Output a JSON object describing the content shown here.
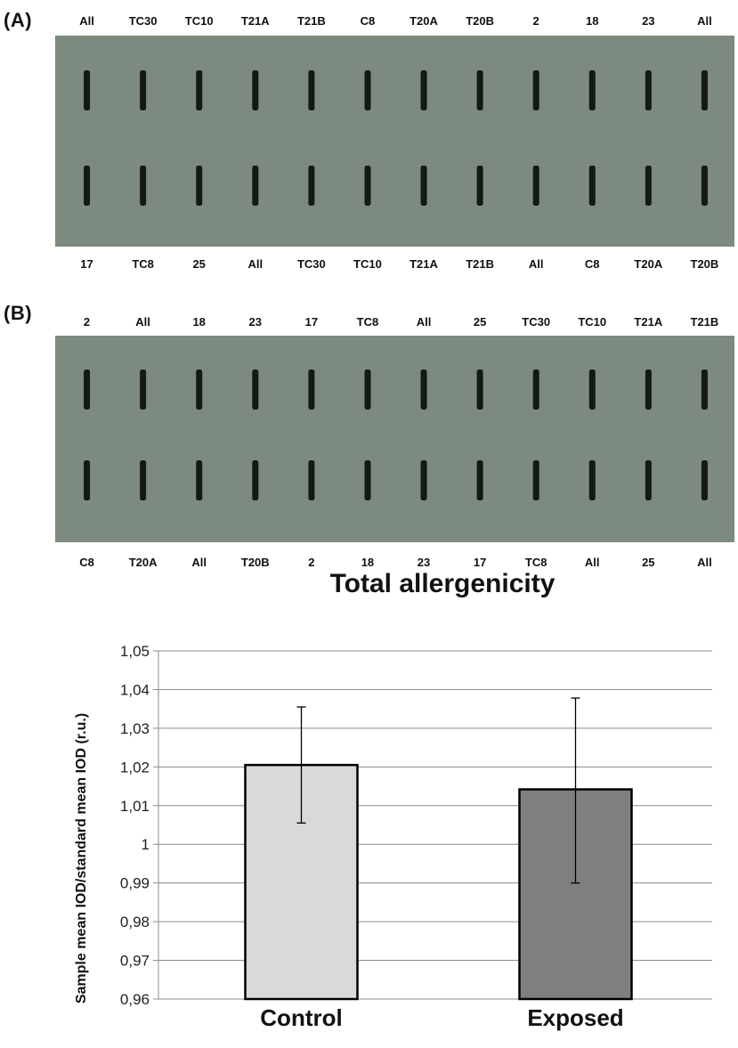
{
  "panel_a": {
    "tag": "(A)",
    "top_labels": [
      "All",
      "TC30",
      "TC10",
      "T21A",
      "T21B",
      "C8",
      "T20A",
      "T20B",
      "2",
      "18",
      "23",
      "All"
    ],
    "bottom_labels": [
      "17",
      "TC8",
      "25",
      "All",
      "TC30",
      "TC10",
      "T21A",
      "T21B",
      "All",
      "C8",
      "T20A",
      "T20B"
    ]
  },
  "panel_b": {
    "tag": "(B)",
    "top_labels": [
      "2",
      "All",
      "18",
      "23",
      "17",
      "TC8",
      "All",
      "25",
      "TC30",
      "TC10",
      "T21A",
      "T21B"
    ],
    "bottom_labels": [
      "C8",
      "T20A",
      "All",
      "T20B",
      "2",
      "18",
      "23",
      "17",
      "TC8",
      "All",
      "25",
      "All"
    ]
  },
  "colors": {
    "membrane": "#7d8a7f",
    "band": "#141914",
    "control_bar": "#d9d9d9",
    "exposed_bar": "#7f7f7f"
  },
  "chart_data": {
    "type": "bar",
    "title": "Total allergenicity",
    "ylabel": "Sample mean IOD/standard mean IOD (r.u.)",
    "xlabel": "",
    "categories": [
      "Control",
      "Exposed"
    ],
    "values": [
      1.0205,
      1.0142
    ],
    "error_low": [
      1.0055,
      0.99
    ],
    "error_high": [
      1.0355,
      1.0378
    ],
    "ylim": [
      0.96,
      1.05
    ],
    "yticks": [
      0.96,
      0.97,
      0.98,
      0.99,
      1.0,
      1.01,
      1.02,
      1.03,
      1.04,
      1.05
    ],
    "ytick_labels": [
      "0,96",
      "0,97",
      "0,98",
      "0,99",
      "1",
      "1,01",
      "1,02",
      "1,03",
      "1,04",
      "1,05"
    ],
    "grid": true,
    "legend": "none"
  }
}
